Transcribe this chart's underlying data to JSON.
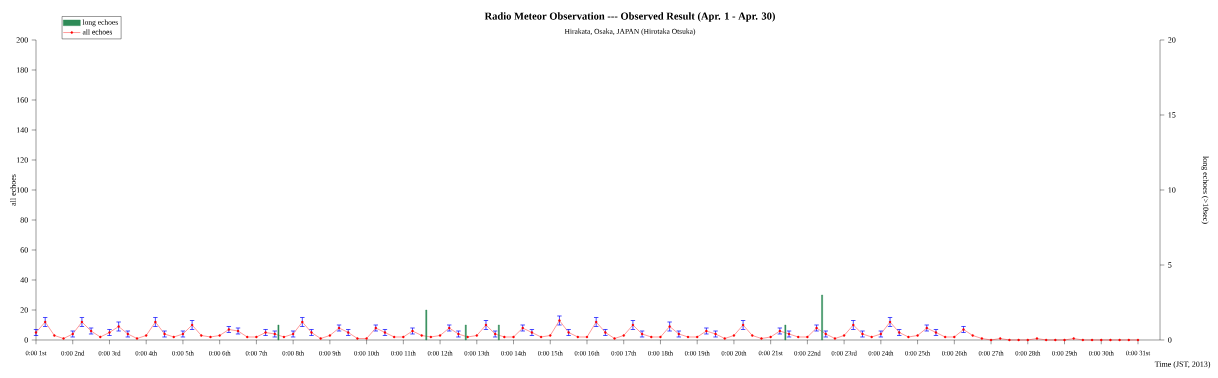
{
  "chart_data": {
    "type": "line",
    "title": "Radio Meteor Observation --- Observed Result (Apr. 1 - Apr. 30)",
    "subtitle": "Hirakata, Osaka, JAPAN (Hirotaka Otsuka)",
    "xlabel": "Time (JST, 2013)",
    "ylabel": "all echoes",
    "y2label": "long echoes (>10sec)",
    "xlim": [
      "2013-04-01T00:00",
      "2013-05-01T14:24"
    ],
    "ylim": [
      0,
      200
    ],
    "y2lim": [
      0,
      20
    ],
    "xticks": [
      {
        "value": "2013-04-01T00:00",
        "label": "0:00 1st"
      },
      {
        "value": "2013-04-02T00:00",
        "label": "0:00 2nd"
      },
      {
        "value": "2013-04-03T00:00",
        "label": "0:00 3rd"
      },
      {
        "value": "2013-04-04T00:00",
        "label": "0:00 4th"
      },
      {
        "value": "2013-04-05T00:00",
        "label": "0:00 5th"
      },
      {
        "value": "2013-04-06T00:00",
        "label": "0:00 6th"
      },
      {
        "value": "2013-04-07T00:00",
        "label": "0:00 7th"
      },
      {
        "value": "2013-04-08T00:00",
        "label": "0:00 8th"
      },
      {
        "value": "2013-04-09T00:00",
        "label": "0:00 9th"
      },
      {
        "value": "2013-04-10T00:00",
        "label": "0:00 10th"
      },
      {
        "value": "2013-04-11T00:00",
        "label": "0:00 11th"
      },
      {
        "value": "2013-04-12T00:00",
        "label": "0:00 12th"
      },
      {
        "value": "2013-04-13T00:00",
        "label": "0:00 13th"
      },
      {
        "value": "2013-04-14T00:00",
        "label": "0:00 14th"
      },
      {
        "value": "2013-04-15T00:00",
        "label": "0:00 15th"
      },
      {
        "value": "2013-04-16T00:00",
        "label": "0:00 16th"
      },
      {
        "value": "2013-04-17T00:00",
        "label": "0:00 17th"
      },
      {
        "value": "2013-04-18T00:00",
        "label": "0:00 18th"
      },
      {
        "value": "2013-04-19T00:00",
        "label": "0:00 19th"
      },
      {
        "value": "2013-04-20T00:00",
        "label": "0:00 20th"
      },
      {
        "value": "2013-04-21T00:00",
        "label": "0:00 21st"
      },
      {
        "value": "2013-04-22T00:00",
        "label": "0:00 22nd"
      },
      {
        "value": "2013-04-23T00:00",
        "label": "0:00 23rd"
      },
      {
        "value": "2013-04-24T00:00",
        "label": "0:00 24th"
      },
      {
        "value": "2013-04-25T00:00",
        "label": "0:00 25th"
      },
      {
        "value": "2013-04-26T00:00",
        "label": "0:00 26th"
      },
      {
        "value": "2013-04-27T00:00",
        "label": "0:00 27th"
      },
      {
        "value": "2013-04-28T00:00",
        "label": "0:00 28th"
      },
      {
        "value": "2013-04-29T00:00",
        "label": "0:00 29th"
      },
      {
        "value": "2013-04-30T00:00",
        "label": "0:00 30th"
      },
      {
        "value": "2013-05-01T00:00",
        "label": "0:00 31st"
      }
    ],
    "yticks": [
      0,
      20,
      40,
      60,
      80,
      100,
      120,
      140,
      160,
      180,
      200
    ],
    "y2ticks": [
      0,
      5,
      10,
      15,
      20
    ],
    "legend": "top left",
    "grid": false,
    "series": [
      {
        "name": "long echoes",
        "type": "bar",
        "axis": "y2",
        "color": "#2e8b57",
        "x": [
          "2013-04-07T14:24",
          "2013-04-11T15:00",
          "2013-04-12T16:48",
          "2013-04-13T14:24",
          "2013-04-21T09:36",
          "2013-04-22T09:36"
        ],
        "values": [
          1,
          2,
          1,
          1,
          1,
          3
        ]
      },
      {
        "name": "all echoes",
        "color": "#ff0000",
        "marker": "circle",
        "line_style": "solid",
        "x": [
          "2013-04-01T00:00",
          "2013-04-01T06:00",
          "2013-04-01T12:00",
          "2013-04-01T18:00",
          "2013-04-02T00:00",
          "2013-04-02T06:00",
          "2013-04-02T12:00",
          "2013-04-02T18:00",
          "2013-04-03T00:00",
          "2013-04-03T06:00",
          "2013-04-03T12:00",
          "2013-04-03T18:00",
          "2013-04-04T00:00",
          "2013-04-04T06:00",
          "2013-04-04T12:00",
          "2013-04-04T18:00",
          "2013-04-05T00:00",
          "2013-04-05T06:00",
          "2013-04-05T12:00",
          "2013-04-05T18:00",
          "2013-04-06T00:00",
          "2013-04-06T06:00",
          "2013-04-06T12:00",
          "2013-04-06T18:00",
          "2013-04-07T00:00",
          "2013-04-07T06:00",
          "2013-04-07T12:00",
          "2013-04-07T18:00",
          "2013-04-08T00:00",
          "2013-04-08T06:00",
          "2013-04-08T12:00",
          "2013-04-08T18:00",
          "2013-04-09T00:00",
          "2013-04-09T06:00",
          "2013-04-09T12:00",
          "2013-04-09T18:00",
          "2013-04-10T00:00",
          "2013-04-10T06:00",
          "2013-04-10T12:00",
          "2013-04-10T18:00",
          "2013-04-11T00:00",
          "2013-04-11T06:00",
          "2013-04-11T12:00",
          "2013-04-11T18:00",
          "2013-04-12T00:00",
          "2013-04-12T06:00",
          "2013-04-12T12:00",
          "2013-04-12T18:00",
          "2013-04-13T00:00",
          "2013-04-13T06:00",
          "2013-04-13T12:00",
          "2013-04-13T18:00",
          "2013-04-14T00:00",
          "2013-04-14T06:00",
          "2013-04-14T12:00",
          "2013-04-14T18:00",
          "2013-04-15T00:00",
          "2013-04-15T06:00",
          "2013-04-15T12:00",
          "2013-04-15T18:00",
          "2013-04-16T00:00",
          "2013-04-16T06:00",
          "2013-04-16T12:00",
          "2013-04-16T18:00",
          "2013-04-17T00:00",
          "2013-04-17T06:00",
          "2013-04-17T12:00",
          "2013-04-17T18:00",
          "2013-04-18T00:00",
          "2013-04-18T06:00",
          "2013-04-18T12:00",
          "2013-04-18T18:00",
          "2013-04-19T00:00",
          "2013-04-19T06:00",
          "2013-04-19T12:00",
          "2013-04-19T18:00",
          "2013-04-20T00:00",
          "2013-04-20T06:00",
          "2013-04-20T12:00",
          "2013-04-20T18:00",
          "2013-04-21T00:00",
          "2013-04-21T06:00",
          "2013-04-21T12:00",
          "2013-04-21T18:00",
          "2013-04-22T00:00",
          "2013-04-22T06:00",
          "2013-04-22T12:00",
          "2013-04-22T18:00",
          "2013-04-23T00:00",
          "2013-04-23T06:00",
          "2013-04-23T12:00",
          "2013-04-23T18:00",
          "2013-04-24T00:00",
          "2013-04-24T06:00",
          "2013-04-24T12:00",
          "2013-04-24T18:00",
          "2013-04-25T00:00",
          "2013-04-25T06:00",
          "2013-04-25T12:00",
          "2013-04-25T18:00",
          "2013-04-26T00:00",
          "2013-04-26T06:00",
          "2013-04-26T12:00",
          "2013-04-26T18:00",
          "2013-04-27T00:00",
          "2013-04-27T06:00",
          "2013-04-27T12:00",
          "2013-04-27T18:00",
          "2013-04-28T00:00",
          "2013-04-28T06:00",
          "2013-04-28T12:00",
          "2013-04-28T18:00",
          "2013-04-29T00:00",
          "2013-04-29T06:00",
          "2013-04-29T12:00",
          "2013-04-29T18:00",
          "2013-04-30T00:00",
          "2013-04-30T06:00",
          "2013-04-30T12:00",
          "2013-04-30T18:00",
          "2013-05-01T00:00"
        ],
        "values": [
          5,
          12,
          3,
          1,
          4,
          12,
          6,
          2,
          5,
          9,
          4,
          1,
          3,
          12,
          4,
          2,
          4,
          10,
          3,
          2,
          3,
          7,
          6,
          2,
          2,
          5,
          4,
          2,
          4,
          12,
          5,
          1,
          3,
          8,
          5,
          1,
          1,
          8,
          5,
          2,
          2,
          6,
          3,
          2,
          3,
          8,
          4,
          2,
          3,
          10,
          4,
          2,
          2,
          8,
          5,
          2,
          3,
          13,
          5,
          2,
          2,
          12,
          5,
          1,
          3,
          10,
          4,
          2,
          2,
          9,
          4,
          2,
          2,
          6,
          4,
          1,
          3,
          10,
          3,
          1,
          2,
          6,
          4,
          2,
          2,
          8,
          4,
          1,
          3,
          10,
          4,
          2,
          4,
          12,
          5,
          2,
          3,
          8,
          5,
          2,
          2,
          7,
          3,
          1,
          0,
          1,
          0,
          0,
          0,
          1,
          0,
          0,
          0,
          1,
          0,
          0,
          0,
          0,
          0,
          0,
          0
        ],
        "errors": [
          2,
          3,
          null,
          null,
          2,
          3,
          2,
          null,
          2,
          3,
          2,
          null,
          null,
          3,
          2,
          null,
          2,
          3,
          null,
          null,
          null,
          2,
          2,
          null,
          null,
          2,
          2,
          null,
          2,
          3,
          2,
          null,
          null,
          2,
          2,
          null,
          null,
          2,
          2,
          null,
          null,
          2,
          null,
          null,
          null,
          2,
          2,
          null,
          null,
          3,
          2,
          null,
          null,
          2,
          2,
          null,
          null,
          3,
          2,
          null,
          null,
          3,
          2,
          null,
          null,
          3,
          2,
          null,
          null,
          3,
          2,
          null,
          null,
          2,
          2,
          null,
          null,
          3,
          null,
          null,
          null,
          2,
          2,
          null,
          null,
          2,
          2,
          null,
          null,
          3,
          2,
          null,
          2,
          3,
          2,
          null,
          null,
          2,
          2,
          null,
          null,
          2,
          null,
          null,
          null,
          null,
          null,
          null,
          null,
          null,
          null,
          null,
          null,
          null,
          null,
          null,
          null,
          null,
          null,
          null,
          null
        ]
      }
    ]
  }
}
